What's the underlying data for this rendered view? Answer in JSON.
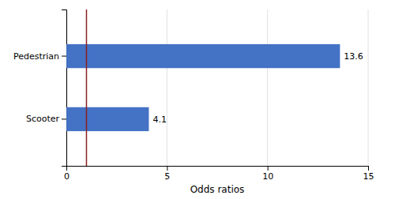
{
  "chart_data": {
    "type": "bar",
    "orientation": "horizontal",
    "categories": [
      "Scooter",
      "Pedestrian"
    ],
    "values": [
      4.1,
      13.6
    ],
    "color": "#4472C4",
    "xlabel": "Odds ratios",
    "xlim": [
      0,
      15
    ],
    "xticks": [
      0,
      5,
      10,
      15
    ],
    "grid": true,
    "data_labels": true,
    "reference_line": {
      "x": 1,
      "color": "#8B2020"
    }
  }
}
